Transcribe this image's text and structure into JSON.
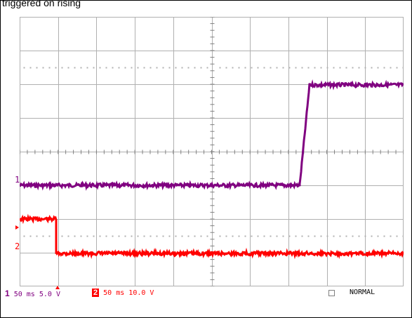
{
  "header": {
    "text": "triggered on rising"
  },
  "channels": [
    {
      "marker": "1",
      "color": "#800080"
    },
    {
      "marker": "2",
      "color": "#ff0000"
    }
  ],
  "footer": {
    "ch1": {
      "number": "1",
      "timebase": "50 ms",
      "volts": "5.0 V",
      "color": "#800080"
    },
    "ch2": {
      "number": "2",
      "timebase": "50 ms",
      "volts": "10.0 V",
      "color": "#ff0000"
    },
    "mode": "NORMAL"
  },
  "colors": {
    "grid": "#b0b0b0",
    "ch1": "#800080",
    "ch2": "#ff0000",
    "frame": "#000000"
  }
}
